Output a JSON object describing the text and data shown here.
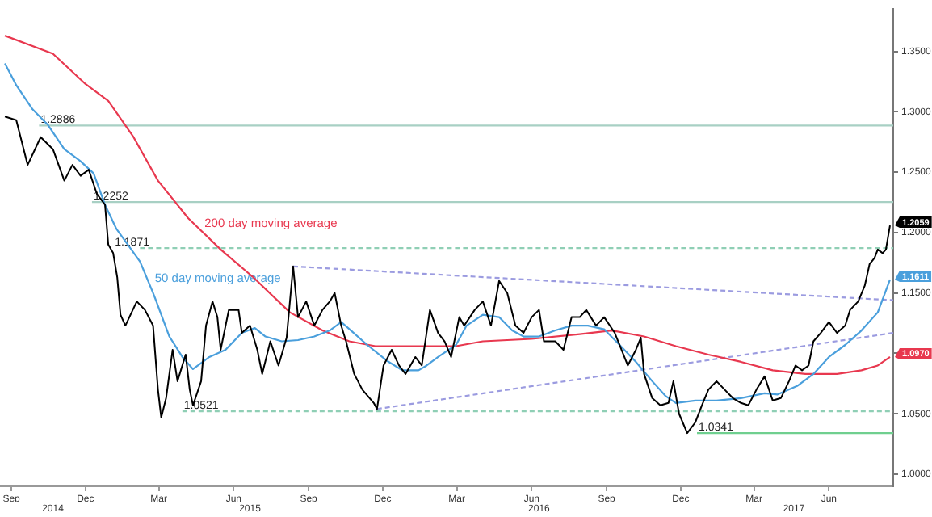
{
  "chart_data": {
    "type": "line",
    "legend": false,
    "grid": false,
    "marker": "none",
    "xlim": [
      "2014-08-18",
      "2017-08-19"
    ],
    "xticks": [
      {
        "value": "2014-09-01",
        "label": "Sep"
      },
      {
        "value": "2014-12-01",
        "label": "Dec"
      },
      {
        "value": "2015-03-01",
        "label": "Mar"
      },
      {
        "value": "2015-06-01",
        "label": "Jun"
      },
      {
        "value": "2015-09-01",
        "label": "Sep"
      },
      {
        "value": "2015-12-01",
        "label": "Dec"
      },
      {
        "value": "2016-03-01",
        "label": "Mar"
      },
      {
        "value": "2016-06-01",
        "label": "Jun"
      },
      {
        "value": "2016-09-01",
        "label": "Sep"
      },
      {
        "value": "2016-12-01",
        "label": "Dec"
      },
      {
        "value": "2017-03-01",
        "label": "Mar"
      },
      {
        "value": "2017-06-01",
        "label": "Jun"
      }
    ],
    "x2lim": [
      "2014-08-18",
      "2017-08-19"
    ],
    "x2ticks": [
      {
        "value": "2014-10-22",
        "label": "2014"
      },
      {
        "value": "2015-06-21",
        "label": "2015"
      },
      {
        "value": "2016-06-10",
        "label": "2016"
      },
      {
        "value": "2017-04-19",
        "label": "2017"
      }
    ],
    "ylim": [
      0.99,
      1.385
    ],
    "yticks": [
      {
        "value": 1,
        "label": "1.0000"
      },
      {
        "value": 1.05,
        "label": "1.0500"
      },
      {
        "value": 1.1,
        "label": null
      },
      {
        "value": 1.15,
        "label": "1.1500"
      },
      {
        "value": 1.2,
        "label": "1.2000"
      },
      {
        "value": 1.25,
        "label": "1.2500"
      },
      {
        "value": 1.3,
        "label": "1.3000"
      },
      {
        "value": 1.35,
        "label": "1.3500"
      }
    ],
    "series": [
      {
        "color": "#000000",
        "x": [
          "2014-08-24",
          "2014-09-07",
          "2014-09-21",
          "2014-10-07",
          "2014-10-22",
          "2014-11-05",
          "2014-11-15",
          "2014-11-25",
          "2014-12-05",
          "2014-12-15",
          "2014-12-25",
          "2014-12-29",
          "2015-01-04",
          "2015-01-09",
          "2015-01-13",
          "2015-01-19",
          "2015-02-02",
          "2015-02-12",
          "2015-02-22",
          "2015-02-28",
          "2015-03-04",
          "2015-03-10",
          "2015-03-18",
          "2015-03-24",
          "2015-04-03",
          "2015-04-08",
          "2015-04-12",
          "2015-04-22",
          "2015-04-28",
          "2015-05-06",
          "2015-05-12",
          "2015-05-16",
          "2015-05-26",
          "2015-06-07",
          "2015-06-11",
          "2015-06-21",
          "2015-06-30",
          "2015-07-06",
          "2015-07-16",
          "2015-07-26",
          "2015-08-05",
          "2015-08-13",
          "2015-08-19",
          "2015-08-29",
          "2015-09-08",
          "2015-09-18",
          "2015-09-27",
          "2015-10-03",
          "2015-10-11",
          "2015-10-17",
          "2015-10-27",
          "2015-11-06",
          "2015-11-20",
          "2015-11-24",
          "2015-12-02",
          "2015-12-12",
          "2015-12-21",
          "2015-12-29",
          "2016-01-10",
          "2016-01-18",
          "2016-01-28",
          "2016-02-07",
          "2016-02-15",
          "2016-02-23",
          "2016-03-04",
          "2016-03-10",
          "2016-03-23",
          "2016-04-02",
          "2016-04-12",
          "2016-04-22",
          "2016-05-02",
          "2016-05-12",
          "2016-05-22",
          "2016-06-01",
          "2016-06-10",
          "2016-06-16",
          "2016-06-30",
          "2016-07-10",
          "2016-07-20",
          "2016-07-30",
          "2016-08-07",
          "2016-08-19",
          "2016-08-29",
          "2016-09-11",
          "2016-09-27",
          "2016-10-07",
          "2016-10-13",
          "2016-10-17",
          "2016-10-27",
          "2016-11-06",
          "2016-11-16",
          "2016-11-22",
          "2016-11-29",
          "2016-12-09",
          "2016-12-19",
          "2016-12-27",
          "2017-01-04",
          "2017-01-14",
          "2017-01-24",
          "2017-02-03",
          "2017-02-13",
          "2017-02-22",
          "2017-03-04",
          "2017-03-14",
          "2017-03-24",
          "2017-04-03",
          "2017-04-13",
          "2017-04-21",
          "2017-04-29",
          "2017-05-07",
          "2017-05-13",
          "2017-05-22",
          "2017-06-01",
          "2017-06-11",
          "2017-06-21",
          "2017-06-27",
          "2017-07-07",
          "2017-07-15",
          "2017-07-21",
          "2017-07-27",
          "2017-07-31",
          "2017-08-06",
          "2017-08-10",
          "2017-08-15"
        ],
        "values": [
          1.296,
          1.293,
          1.256,
          1.279,
          1.269,
          1.243,
          1.256,
          1.247,
          1.252,
          1.232,
          1.223,
          1.19,
          1.183,
          1.163,
          1.132,
          1.123,
          1.143,
          1.136,
          1.123,
          1.07,
          1.047,
          1.063,
          1.103,
          1.077,
          1.099,
          1.07,
          1.057,
          1.077,
          1.123,
          1.143,
          1.13,
          1.103,
          1.136,
          1.136,
          1.117,
          1.123,
          1.103,
          1.083,
          1.11,
          1.09,
          1.113,
          1.172,
          1.13,
          1.143,
          1.123,
          1.136,
          1.143,
          1.15,
          1.123,
          1.11,
          1.083,
          1.07,
          1.059,
          1.054,
          1.09,
          1.103,
          1.09,
          1.083,
          1.097,
          1.09,
          1.136,
          1.117,
          1.11,
          1.097,
          1.13,
          1.123,
          1.136,
          1.143,
          1.123,
          1.16,
          1.15,
          1.123,
          1.117,
          1.13,
          1.136,
          1.11,
          1.11,
          1.103,
          1.13,
          1.13,
          1.136,
          1.123,
          1.13,
          1.117,
          1.09,
          1.103,
          1.113,
          1.083,
          1.063,
          1.057,
          1.059,
          1.077,
          1.05,
          1.034,
          1.043,
          1.057,
          1.07,
          1.077,
          1.07,
          1.063,
          1.059,
          1.057,
          1.07,
          1.081,
          1.061,
          1.063,
          1.077,
          1.09,
          1.086,
          1.09,
          1.11,
          1.117,
          1.126,
          1.117,
          1.123,
          1.136,
          1.143,
          1.156,
          1.174,
          1.179,
          1.186,
          1.183,
          1.186,
          1.2059
        ],
        "value_labels": [
          null,
          null,
          null,
          null,
          null,
          null,
          null,
          null,
          null,
          null,
          null,
          null,
          null,
          null,
          null,
          null,
          null,
          null,
          null,
          null,
          null,
          null,
          null,
          null,
          null,
          null,
          null,
          null,
          null,
          null,
          null,
          null,
          null,
          null,
          null,
          null,
          null,
          null,
          null,
          null,
          null,
          null,
          null,
          null,
          null,
          null,
          null,
          null,
          null,
          null,
          null,
          null,
          null,
          null,
          null,
          null,
          null,
          null,
          null,
          null,
          null,
          null,
          null,
          null,
          null,
          null,
          null,
          null,
          null,
          null,
          null,
          null,
          null,
          null,
          null,
          null,
          null,
          null,
          null,
          null,
          null,
          null,
          null,
          null,
          null,
          null,
          null,
          null,
          null,
          null,
          null,
          null,
          null,
          null,
          null,
          null,
          null,
          null,
          null,
          null,
          null,
          null,
          null,
          null,
          null,
          null,
          null,
          null,
          null,
          null,
          null,
          null,
          null,
          null,
          null,
          null,
          null,
          null,
          null,
          null,
          null,
          null,
          null,
          "1.2059"
        ]
      },
      {
        "name": "50 day moving average",
        "color": "#4a9fdc",
        "x": [
          "2014-08-24",
          "2014-09-07",
          "2014-09-27",
          "2014-10-16",
          "2014-11-05",
          "2014-11-25",
          "2014-12-11",
          "2014-12-25",
          "2015-01-08",
          "2015-02-06",
          "2015-02-22",
          "2015-02-26",
          "2015-03-14",
          "2015-03-30",
          "2015-04-12",
          "2015-05-02",
          "2015-05-22",
          "2015-06-11",
          "2015-06-27",
          "2015-07-10",
          "2015-07-30",
          "2015-08-19",
          "2015-09-08",
          "2015-09-27",
          "2015-10-11",
          "2015-10-23",
          "2015-11-12",
          "2015-12-06",
          "2015-12-25",
          "2016-01-14",
          "2016-01-24",
          "2016-02-07",
          "2016-02-29",
          "2016-03-13",
          "2016-04-02",
          "2016-04-22",
          "2016-05-08",
          "2016-05-22",
          "2016-06-10",
          "2016-06-30",
          "2016-07-20",
          "2016-08-09",
          "2016-08-29",
          "2016-09-17",
          "2016-10-07",
          "2016-10-27",
          "2016-11-12",
          "2016-11-25",
          "2016-12-19",
          "2017-01-14",
          "2017-02-13",
          "2017-03-14",
          "2017-03-30",
          "2017-04-23",
          "2017-05-13",
          "2017-06-01",
          "2017-06-21",
          "2017-07-11",
          "2017-07-31",
          "2017-08-15"
        ],
        "values": [
          1.34,
          1.322,
          1.302,
          1.289,
          1.269,
          1.259,
          1.249,
          1.223,
          1.203,
          1.176,
          1.15,
          1.143,
          1.114,
          1.097,
          1.087,
          1.097,
          1.103,
          1.117,
          1.121,
          1.114,
          1.11,
          1.111,
          1.114,
          1.119,
          1.126,
          1.119,
          1.107,
          1.094,
          1.086,
          1.086,
          1.09,
          1.097,
          1.107,
          1.123,
          1.132,
          1.13,
          1.119,
          1.114,
          1.114,
          1.119,
          1.123,
          1.123,
          1.12,
          1.107,
          1.093,
          1.077,
          1.065,
          1.059,
          1.061,
          1.061,
          1.063,
          1.067,
          1.066,
          1.073,
          1.083,
          1.097,
          1.107,
          1.119,
          1.134,
          1.1611
        ],
        "value_labels": [
          null,
          null,
          null,
          null,
          null,
          null,
          null,
          null,
          null,
          null,
          null,
          null,
          null,
          null,
          null,
          null,
          null,
          null,
          null,
          null,
          null,
          null,
          null,
          null,
          null,
          null,
          null,
          null,
          null,
          null,
          null,
          null,
          null,
          null,
          null,
          null,
          null,
          null,
          null,
          null,
          null,
          null,
          null,
          null,
          null,
          null,
          null,
          null,
          null,
          null,
          null,
          null,
          null,
          null,
          null,
          null,
          null,
          null,
          null,
          "1.1611"
        ]
      },
      {
        "name": "200 day moving average",
        "color": "#e8384f",
        "x": [
          "2014-08-24",
          "2014-10-22",
          "2014-12-01",
          "2014-12-29",
          "2015-01-29",
          "2015-02-28",
          "2015-04-06",
          "2015-05-16",
          "2015-06-25",
          "2015-08-09",
          "2015-09-18",
          "2015-10-21",
          "2015-11-22",
          "2016-01-14",
          "2016-02-29",
          "2016-04-02",
          "2016-06-01",
          "2016-07-30",
          "2016-09-07",
          "2016-10-17",
          "2016-11-25",
          "2017-01-04",
          "2017-02-13",
          "2017-03-24",
          "2017-05-03",
          "2017-06-11",
          "2017-07-11",
          "2017-07-31",
          "2017-08-15"
        ],
        "values": [
          1.363,
          1.348,
          1.323,
          1.309,
          1.279,
          1.243,
          1.212,
          1.186,
          1.163,
          1.134,
          1.119,
          1.11,
          1.106,
          1.106,
          1.106,
          1.11,
          1.112,
          1.116,
          1.119,
          1.114,
          1.106,
          1.099,
          1.093,
          1.086,
          1.083,
          1.083,
          1.086,
          1.09,
          1.097
        ],
        "value_labels": [
          null,
          null,
          null,
          null,
          null,
          null,
          null,
          null,
          null,
          null,
          null,
          null,
          null,
          null,
          null,
          null,
          null,
          null,
          null,
          null,
          null,
          null,
          null,
          null,
          null,
          null,
          null,
          null,
          "1.0970"
        ]
      },
      {
        "color": "#9b9be0",
        "line_style": "dashed",
        "x": [
          "2015-08-13",
          "2017-08-19"
        ],
        "values": [
          1.172,
          1.144
        ]
      },
      {
        "color": "#9b9be0",
        "line_style": "dashed",
        "x": [
          "2015-11-24",
          "2017-08-19"
        ],
        "values": [
          1.054,
          1.117
        ]
      },
      {
        "color": "#a8d0c4",
        "x": [
          "2014-10-05",
          "2017-08-19"
        ],
        "values": [
          1.2886,
          1.2886
        ]
      },
      {
        "color": "#a8d0c4",
        "x": [
          "2014-12-09",
          "2017-08-19"
        ],
        "values": [
          1.2252,
          1.2252
        ]
      },
      {
        "color": "#8fcfb5",
        "line_style": "dashed",
        "x": [
          "2015-02-06",
          "2017-08-19"
        ],
        "values": [
          1.1871,
          1.1871
        ]
      },
      {
        "color": "#8fcfb5",
        "line_style": "dashed",
        "x": [
          "2015-03-30",
          "2017-08-19"
        ],
        "values": [
          1.0521,
          1.0521
        ]
      },
      {
        "color": "#6fcf8f",
        "x": [
          "2016-12-21",
          "2017-08-19"
        ],
        "values": [
          1.0341,
          1.0341
        ]
      }
    ],
    "annotations": [
      {
        "text": "1.2886",
        "x": "2014-10-05",
        "y": 1.2886
      },
      {
        "text": "1.2252",
        "x": "2014-12-09",
        "y": 1.2252
      },
      {
        "text": "1.1871",
        "x": "2015-01-04",
        "y": 1.1871
      },
      {
        "text": "1.0521",
        "x": "2015-03-30",
        "y": 1.0521
      },
      {
        "text": "1.0341",
        "x": "2016-12-21",
        "y": 1.0341
      }
    ]
  }
}
